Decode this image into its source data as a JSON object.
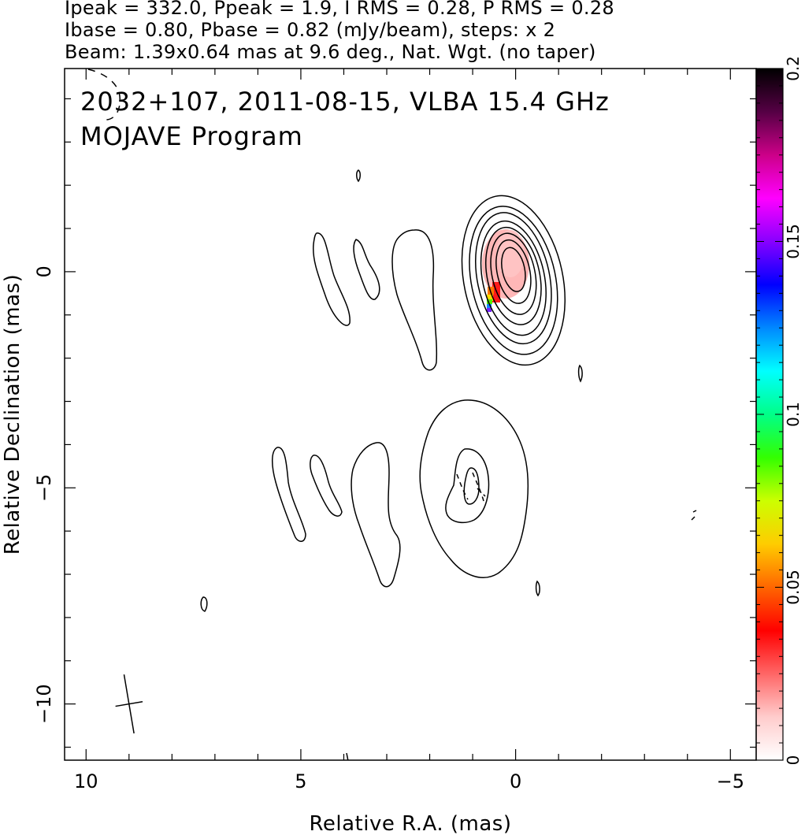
{
  "header": {
    "line1": "Ipeak = 332.0, Ppeak = 1.9, I RMS = 0.28, P RMS = 0.28",
    "line2": "Ibase = 0.80, Pbase = 0.82 (mJy/beam), steps: x 2",
    "line3": "Beam: 1.39x0.64 mas at 9.6 deg., Nat. Wgt. (no taper)"
  },
  "chart_data": {
    "type": "contour",
    "title": "2032+107, 2011-08-15, VLBA 15.4 GHz",
    "subtitle": "MOJAVE Program",
    "xlabel": "Relative R.A. (mas)",
    "ylabel": "Relative Declination (mas)",
    "xlim": [
      10.5,
      -5.6
    ],
    "ylim": [
      -11.3,
      4.7
    ],
    "x_ticks": [
      10,
      5,
      0,
      -5
    ],
    "y_ticks": [
      0,
      -5,
      -10
    ],
    "colorbar": {
      "label_ticks": [
        "0",
        "0.05",
        "0.1",
        "0.15",
        "0.2"
      ],
      "range": [
        0,
        0.2
      ],
      "colors": [
        "#ffffff",
        "#ffcccc",
        "#ff6666",
        "#ff0000",
        "#ff6600",
        "#ffcc00",
        "#ccff00",
        "#33ff00",
        "#00ff88",
        "#00ffff",
        "#0088ff",
        "#0000ff",
        "#8800ff",
        "#ff00ff",
        "#cc0088",
        "#550044",
        "#000000"
      ]
    },
    "core_contours": [
      {
        "x": 0.05,
        "y": -0.2,
        "rx": 1.15,
        "ry": 2.0
      },
      {
        "x": 0.05,
        "y": -0.2,
        "rx": 0.98,
        "ry": 1.75
      },
      {
        "x": 0.05,
        "y": -0.15,
        "rx": 0.84,
        "ry": 1.55
      },
      {
        "x": 0.05,
        "y": -0.15,
        "rx": 0.72,
        "ry": 1.35
      },
      {
        "x": 0.05,
        "y": -0.1,
        "rx": 0.61,
        "ry": 1.15
      },
      {
        "x": 0.05,
        "y": -0.05,
        "rx": 0.5,
        "ry": 0.96
      },
      {
        "x": 0.05,
        "y": 0.0,
        "rx": 0.38,
        "ry": 0.75
      },
      {
        "x": 0.05,
        "y": 0.05,
        "rx": 0.26,
        "ry": 0.52
      }
    ],
    "beam": {
      "major": 1.39,
      "minor": 0.64,
      "pa_deg": 9.6,
      "center": [
        9.0,
        -10.0
      ]
    }
  }
}
